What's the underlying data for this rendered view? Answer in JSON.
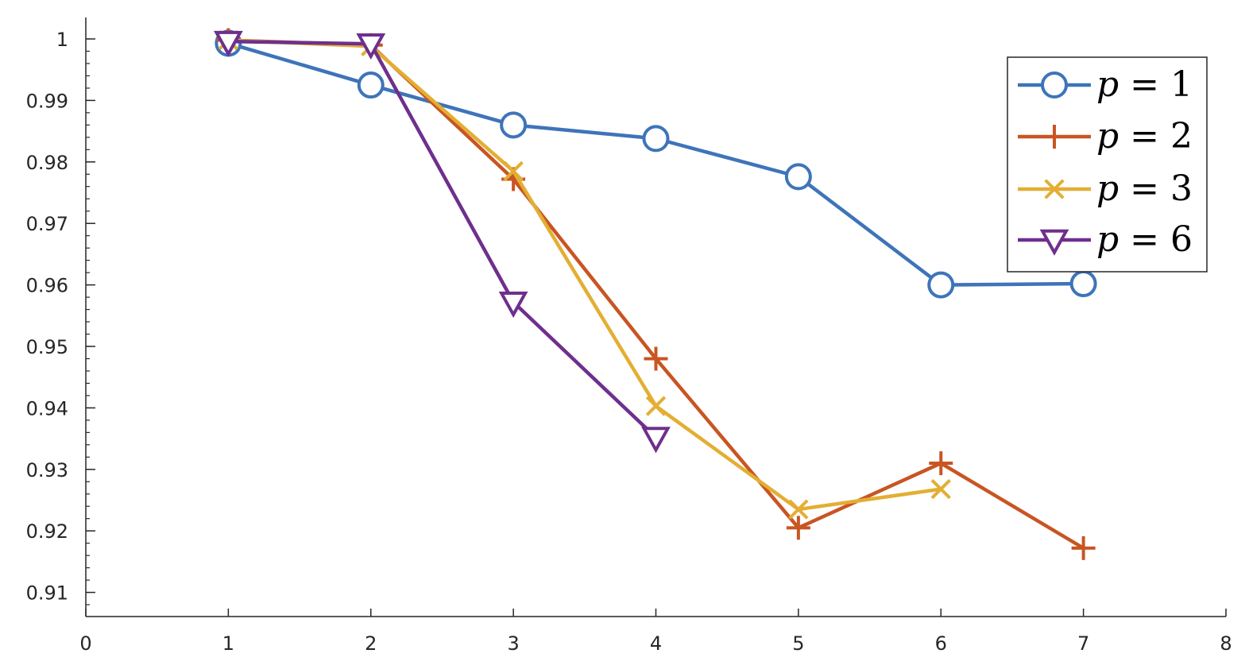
{
  "chart_data": {
    "type": "line",
    "title": "",
    "xlabel": "",
    "ylabel": "",
    "xlim": [
      0,
      8
    ],
    "ylim": [
      0.907,
      1.0
    ],
    "x_ticks": [
      "0",
      "1",
      "2",
      "3",
      "4",
      "5",
      "6",
      "7",
      "8"
    ],
    "y_ticks": [
      "0.91",
      "0.92",
      "0.93",
      "0.94",
      "0.95",
      "0.96",
      "0.97",
      "0.98",
      "0.99",
      "1"
    ],
    "grid": false,
    "legend_position": "top-right",
    "series": [
      {
        "name": "p = 1",
        "legend_var": "p",
        "legend_eq": "=",
        "legend_val": "1",
        "color": "#3e74b9",
        "marker": "circle",
        "x": [
          1,
          2,
          3,
          4,
          5,
          6,
          7
        ],
        "y": [
          0.9993,
          0.9925,
          0.986,
          0.9838,
          0.9776,
          0.96,
          0.9602
        ]
      },
      {
        "name": "p = 2",
        "legend_var": "p",
        "legend_eq": "=",
        "legend_val": "2",
        "color": "#c85522",
        "marker": "plus",
        "x": [
          1,
          2,
          3,
          4,
          5,
          6,
          7
        ],
        "y": [
          0.9998,
          0.999,
          0.9772,
          0.948,
          0.9205,
          0.931,
          0.9172
        ]
      },
      {
        "name": "p = 3",
        "legend_var": "p",
        "legend_eq": "=",
        "legend_val": "3",
        "color": "#e3ae33",
        "marker": "x",
        "x": [
          1,
          2,
          3,
          4,
          5,
          6
        ],
        "y": [
          0.9998,
          0.9988,
          0.9785,
          0.9403,
          0.9235,
          0.9268
        ]
      },
      {
        "name": "p = 6",
        "legend_var": "p",
        "legend_eq": "=",
        "legend_val": "6",
        "color": "#6f2f8d",
        "marker": "triangle-down",
        "x": [
          1,
          2,
          3,
          4
        ],
        "y": [
          0.9996,
          0.9992,
          0.9572,
          0.9352
        ]
      }
    ]
  }
}
